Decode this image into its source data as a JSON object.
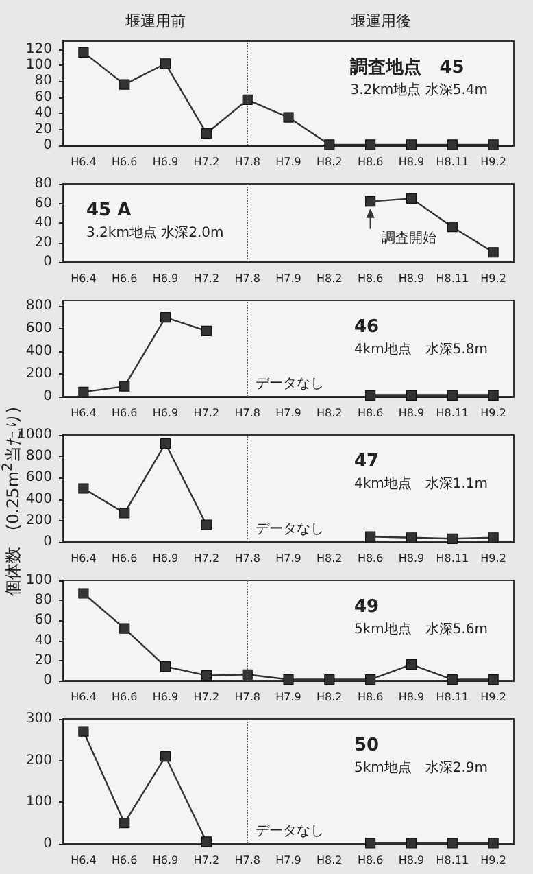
{
  "chart_data": [
    {
      "type": "line",
      "title": "調査地点　45",
      "subtitle": "3.2km地点 水深5.4m",
      "categories": [
        "H6.4",
        "H6.6",
        "H6.9",
        "H7.2",
        "H7.8",
        "H7.9",
        "H8.2",
        "H8.6",
        "H8.9",
        "H8.11",
        "H9.2"
      ],
      "series": [
        {
          "color": "#333333",
          "values": [
            116,
            76,
            102,
            15,
            57,
            35,
            1,
            1,
            1,
            1,
            1
          ]
        }
      ],
      "ylim": [
        0,
        130
      ],
      "yticks": [
        0,
        20,
        40,
        60,
        80,
        100,
        120
      ],
      "marker": "square",
      "line_style": "solid",
      "ref_lines": [
        {
          "axis": "x",
          "value": "H7.8",
          "line_style": "dotted",
          "color": "#555555"
        }
      ],
      "annotations": [
        "堰運用前",
        "堰運用後"
      ]
    },
    {
      "type": "line",
      "title": "45 A",
      "subtitle": "3.2km地点 水深2.0m",
      "categories": [
        "H6.4",
        "H6.6",
        "H6.9",
        "H7.2",
        "H7.8",
        "H7.9",
        "H8.2",
        "H8.6",
        "H8.9",
        "H8.11",
        "H9.2"
      ],
      "series": [
        {
          "color": "#333333",
          "values": [
            null,
            null,
            null,
            null,
            null,
            null,
            null,
            62,
            65,
            36,
            10
          ]
        }
      ],
      "ylim": [
        0,
        80
      ],
      "yticks": [
        0,
        20,
        40,
        60,
        80
      ],
      "marker": "square",
      "line_style": "solid",
      "ref_lines": [
        {
          "axis": "x",
          "value": "H7.8",
          "line_style": "dotted",
          "color": "#555555"
        }
      ],
      "annotations": [
        {
          "text": "調査開始",
          "x": "H8.6",
          "y": 62
        }
      ]
    },
    {
      "type": "line",
      "title": "46",
      "subtitle": "4km地点　水深5.8m",
      "categories": [
        "H6.4",
        "H6.6",
        "H6.9",
        "H7.2",
        "H7.8",
        "H7.9",
        "H8.2",
        "H8.6",
        "H8.9",
        "H8.11",
        "H9.2"
      ],
      "series": [
        {
          "color": "#333333",
          "values": [
            40,
            90,
            700,
            580,
            null,
            null,
            null,
            10,
            10,
            10,
            10
          ]
        }
      ],
      "ylim": [
        0,
        850
      ],
      "yticks": [
        0,
        200,
        400,
        600,
        800
      ],
      "marker": "square",
      "line_style": "solid",
      "ref_lines": [
        {
          "axis": "x",
          "value": "H7.8",
          "line_style": "dotted",
          "color": "#555555"
        }
      ],
      "annotations": [
        "データなし"
      ]
    },
    {
      "type": "line",
      "title": "47",
      "subtitle": "4km地点　水深1.1m",
      "ylabel": "個体数　(0.25m$^{2}$当たり)",
      "categories": [
        "H6.4",
        "H6.6",
        "H6.9",
        "H7.2",
        "H7.8",
        "H7.9",
        "H8.2",
        "H8.6",
        "H8.9",
        "H8.11",
        "H9.2"
      ],
      "series": [
        {
          "color": "#333333",
          "values": [
            500,
            270,
            920,
            160,
            null,
            null,
            null,
            50,
            40,
            30,
            40
          ]
        }
      ],
      "ylim": [
        0,
        1000
      ],
      "yticks": [
        0,
        200,
        400,
        600,
        800,
        1000
      ],
      "marker": "square",
      "line_style": "solid",
      "ref_lines": [
        {
          "axis": "x",
          "value": "H7.8",
          "line_style": "dotted",
          "color": "#555555"
        }
      ],
      "annotations": [
        "データなし"
      ]
    },
    {
      "type": "line",
      "title": "49",
      "subtitle": "5km地点　水深5.6m",
      "categories": [
        "H6.4",
        "H6.6",
        "H6.9",
        "H7.2",
        "H7.8",
        "H7.9",
        "H8.2",
        "H8.6",
        "H8.9",
        "H8.11",
        "H9.2"
      ],
      "series": [
        {
          "color": "#333333",
          "values": [
            87,
            52,
            14,
            5,
            6,
            1,
            1,
            1,
            16,
            1,
            1
          ]
        }
      ],
      "ylim": [
        0,
        100
      ],
      "yticks": [
        0,
        20,
        40,
        60,
        80,
        100
      ],
      "marker": "square",
      "line_style": "solid",
      "ref_lines": [
        {
          "axis": "x",
          "value": "H7.8",
          "line_style": "dotted",
          "color": "#555555"
        }
      ]
    },
    {
      "type": "line",
      "title": "50",
      "subtitle": "5km地点　水深2.9m",
      "categories": [
        "H6.4",
        "H6.6",
        "H6.9",
        "H7.2",
        "H7.8",
        "H7.9",
        "H8.2",
        "H8.6",
        "H8.9",
        "H8.11",
        "H9.2"
      ],
      "series": [
        {
          "color": "#333333",
          "values": [
            270,
            50,
            210,
            5,
            null,
            null,
            null,
            2,
            2,
            2,
            2
          ]
        }
      ],
      "ylim": [
        0,
        300
      ],
      "yticks": [
        0,
        100,
        200,
        300
      ],
      "marker": "square",
      "line_style": "solid",
      "ref_lines": [
        {
          "axis": "x",
          "value": "H7.8",
          "line_style": "dotted",
          "color": "#555555"
        }
      ],
      "annotations": [
        "データなし"
      ]
    }
  ]
}
